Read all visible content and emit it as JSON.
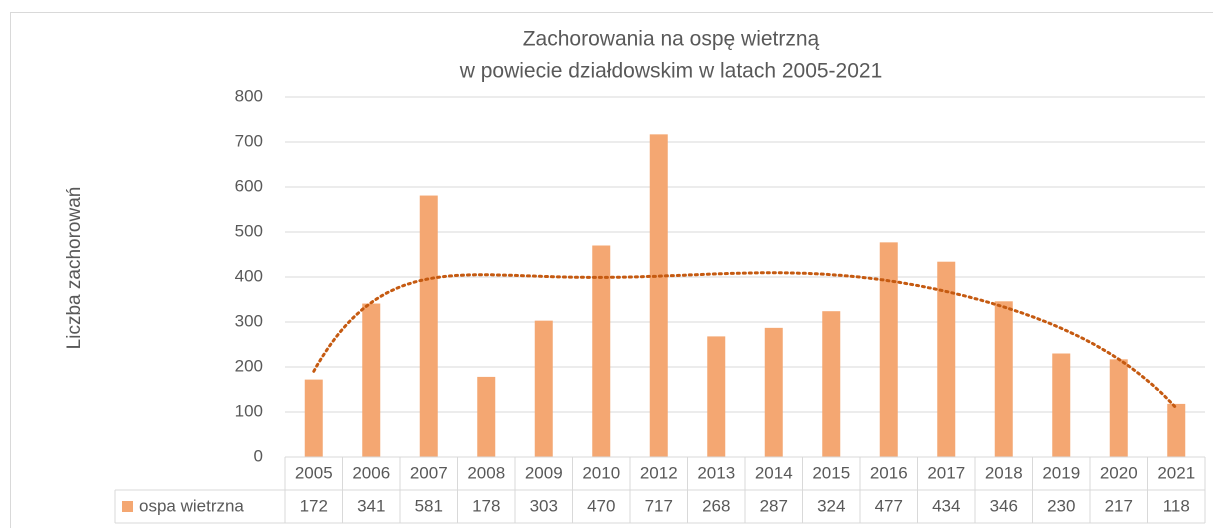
{
  "chart_data": {
    "type": "bar",
    "title": [
      "Zachorowania na ospę wietrzną",
      "w powiecie działdowskim w latach 2005-2021"
    ],
    "y_label": "Liczba zachorowań",
    "categories": [
      "2005",
      "2006",
      "2007",
      "2008",
      "2009",
      "2010",
      "2012",
      "2013",
      "2014",
      "2015",
      "2016",
      "2017",
      "2018",
      "2019",
      "2020",
      "2021"
    ],
    "series": [
      {
        "name": "ospa wietrzna",
        "color": "#f4a772",
        "values": [
          172,
          341,
          581,
          178,
          303,
          470,
          717,
          268,
          287,
          324,
          477,
          434,
          346,
          230,
          217,
          118
        ]
      }
    ],
    "ylim": [
      0,
      800
    ],
    "yticks": [
      0,
      100,
      200,
      300,
      400,
      500,
      600,
      700,
      800
    ],
    "grid": true,
    "data_table": true,
    "trendline": {
      "type": "polynomial",
      "order": 6,
      "color": "#c55a11"
    }
  }
}
